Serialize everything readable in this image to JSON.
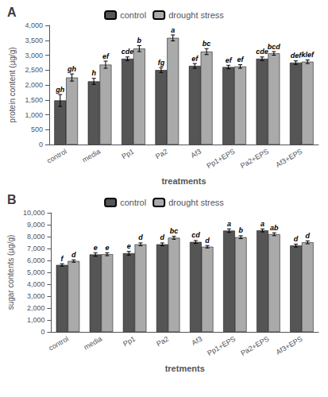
{
  "chart_data": [
    {
      "type": "bar",
      "title": "A",
      "xlabel": "treatments",
      "ylabel": "protein content (µg/g)",
      "categories": [
        "control",
        "media",
        "Pp1",
        "Pa2",
        "Af3",
        "Pp1+EPS",
        "Pa2+EPS",
        "Af3+EPS"
      ],
      "series": [
        {
          "name": "control",
          "color": "#555555",
          "values": [
            1480,
            2120,
            2880,
            2500,
            2640,
            2600,
            2880,
            2750
          ],
          "errors": [
            200,
            100,
            60,
            80,
            80,
            60,
            60,
            60
          ],
          "labels": [
            "gh",
            "h",
            "cde",
            "fg",
            "ef",
            "ef",
            "cde",
            "def"
          ]
        },
        {
          "name": "drought stress",
          "color": "#aaaaaa",
          "values": [
            2250,
            2680,
            3220,
            3580,
            3120,
            2620,
            3060,
            2780
          ],
          "errors": [
            120,
            120,
            100,
            100,
            100,
            60,
            60,
            60
          ],
          "labels": [
            "gh",
            "ef",
            "b",
            "a",
            "bc",
            "ef",
            "bcd",
            "klef"
          ]
        }
      ],
      "ylim": [
        0,
        4000
      ],
      "yticks": [
        0,
        500,
        1000,
        1500,
        2000,
        2500,
        3000,
        3500,
        4000
      ],
      "grid": false,
      "legend": "top"
    },
    {
      "type": "bar",
      "title": "B",
      "xlabel": "tretments",
      "ylabel": "sugar contents (µg/g)",
      "categories": [
        "control",
        "media",
        "Pp1",
        "Pa2",
        "Af3",
        "Pp1+EPS",
        "Pa2+EPS",
        "Af3+EPS"
      ],
      "series": [
        {
          "name": "control",
          "color": "#555555",
          "values": [
            5620,
            6500,
            6600,
            7350,
            7550,
            8500,
            8520,
            7250
          ],
          "errors": [
            100,
            150,
            150,
            120,
            120,
            150,
            120,
            120
          ],
          "labels": [
            "f",
            "e",
            "e",
            "d",
            "cd",
            "a",
            "a",
            "d"
          ]
        },
        {
          "name": "drought stress",
          "color": "#aaaaaa",
          "values": [
            5950,
            6520,
            7350,
            7900,
            7150,
            7950,
            8200,
            7520
          ],
          "errors": [
            100,
            120,
            120,
            120,
            100,
            120,
            120,
            120
          ],
          "labels": [
            "d",
            "e",
            "d",
            "bc",
            "d",
            "b",
            "ab",
            "d"
          ]
        }
      ],
      "ylim": [
        0,
        10000
      ],
      "yticks": [
        0,
        1000,
        2000,
        3000,
        4000,
        5000,
        6000,
        7000,
        8000,
        9000,
        10000
      ],
      "grid": false,
      "legend": "top"
    }
  ]
}
